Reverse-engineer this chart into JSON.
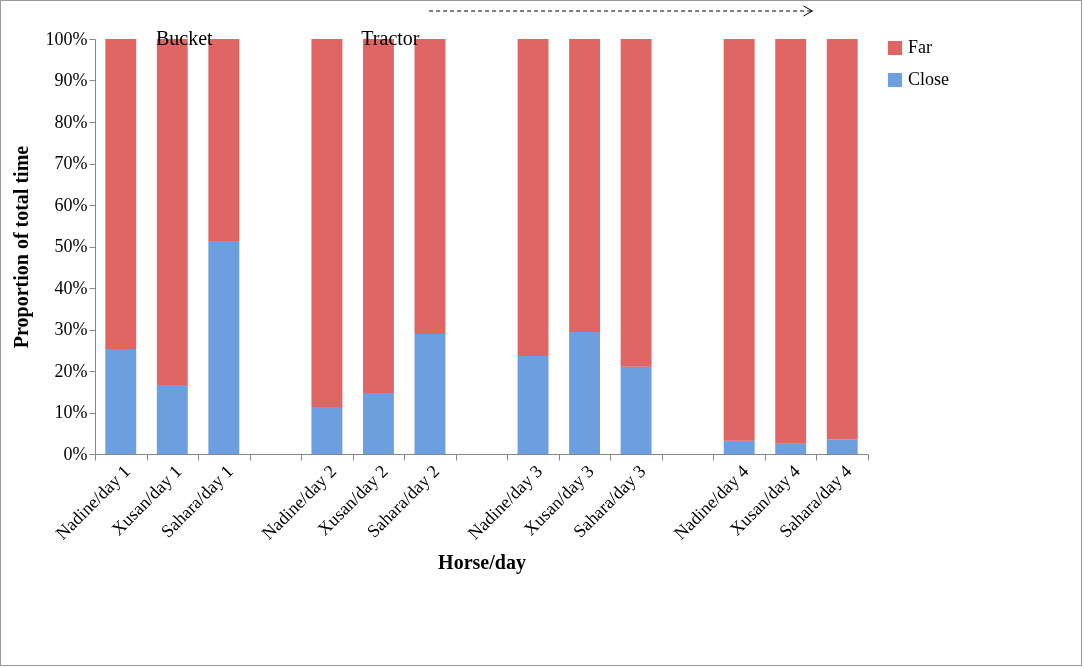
{
  "chart_data": {
    "type": "bar",
    "stacked": true,
    "categories": [
      "Nadine/day 1",
      "Xusan/day 1",
      "Sahara/day 1",
      null,
      "Nadine/day 2",
      "Xusan/day 2",
      "Sahara/day 2",
      null,
      "Nadine/day 3",
      "Xusan/day 3",
      "Sahara/day 3",
      null,
      "Nadine/day 4",
      "Xusan/day 4",
      "Sahara/day 4"
    ],
    "series": [
      {
        "name": "Close",
        "color": "#6c9ee0",
        "values": [
          25.3,
          16.6,
          51.3,
          null,
          11.3,
          14.7,
          28.9,
          null,
          23.6,
          29.4,
          21,
          null,
          3.2,
          2.5,
          3.5
        ]
      },
      {
        "name": "Far",
        "color": "#e06666",
        "values": [
          74.7,
          83.4,
          48.7,
          null,
          88.7,
          85.3,
          71.1,
          null,
          76.4,
          70.6,
          79,
          null,
          96.8,
          97.5,
          96.5
        ]
      }
    ],
    "xlabel": "Horse/day",
    "ylabel": "Proportion of total time",
    "ylim": [
      0,
      100
    ],
    "yticks": [
      {
        "value": 0,
        "label": "0%"
      },
      {
        "value": 10,
        "label": "10%"
      },
      {
        "value": 20,
        "label": "20%"
      },
      {
        "value": 30,
        "label": "30%"
      },
      {
        "value": 40,
        "label": "40%"
      },
      {
        "value": 50,
        "label": "50%"
      },
      {
        "value": 60,
        "label": "60%"
      },
      {
        "value": 70,
        "label": "70%"
      },
      {
        "value": 80,
        "label": "80%"
      },
      {
        "value": 90,
        "label": "90%"
      },
      {
        "value": 100,
        "label": "100%"
      }
    ],
    "annotations": [
      {
        "text": "Bucket",
        "x": "Xusan/day 1",
        "y": 100
      },
      {
        "text": "Tractor",
        "x": "Xusan/day 2",
        "y": 100
      }
    ],
    "legend": "right",
    "grid": false
  }
}
